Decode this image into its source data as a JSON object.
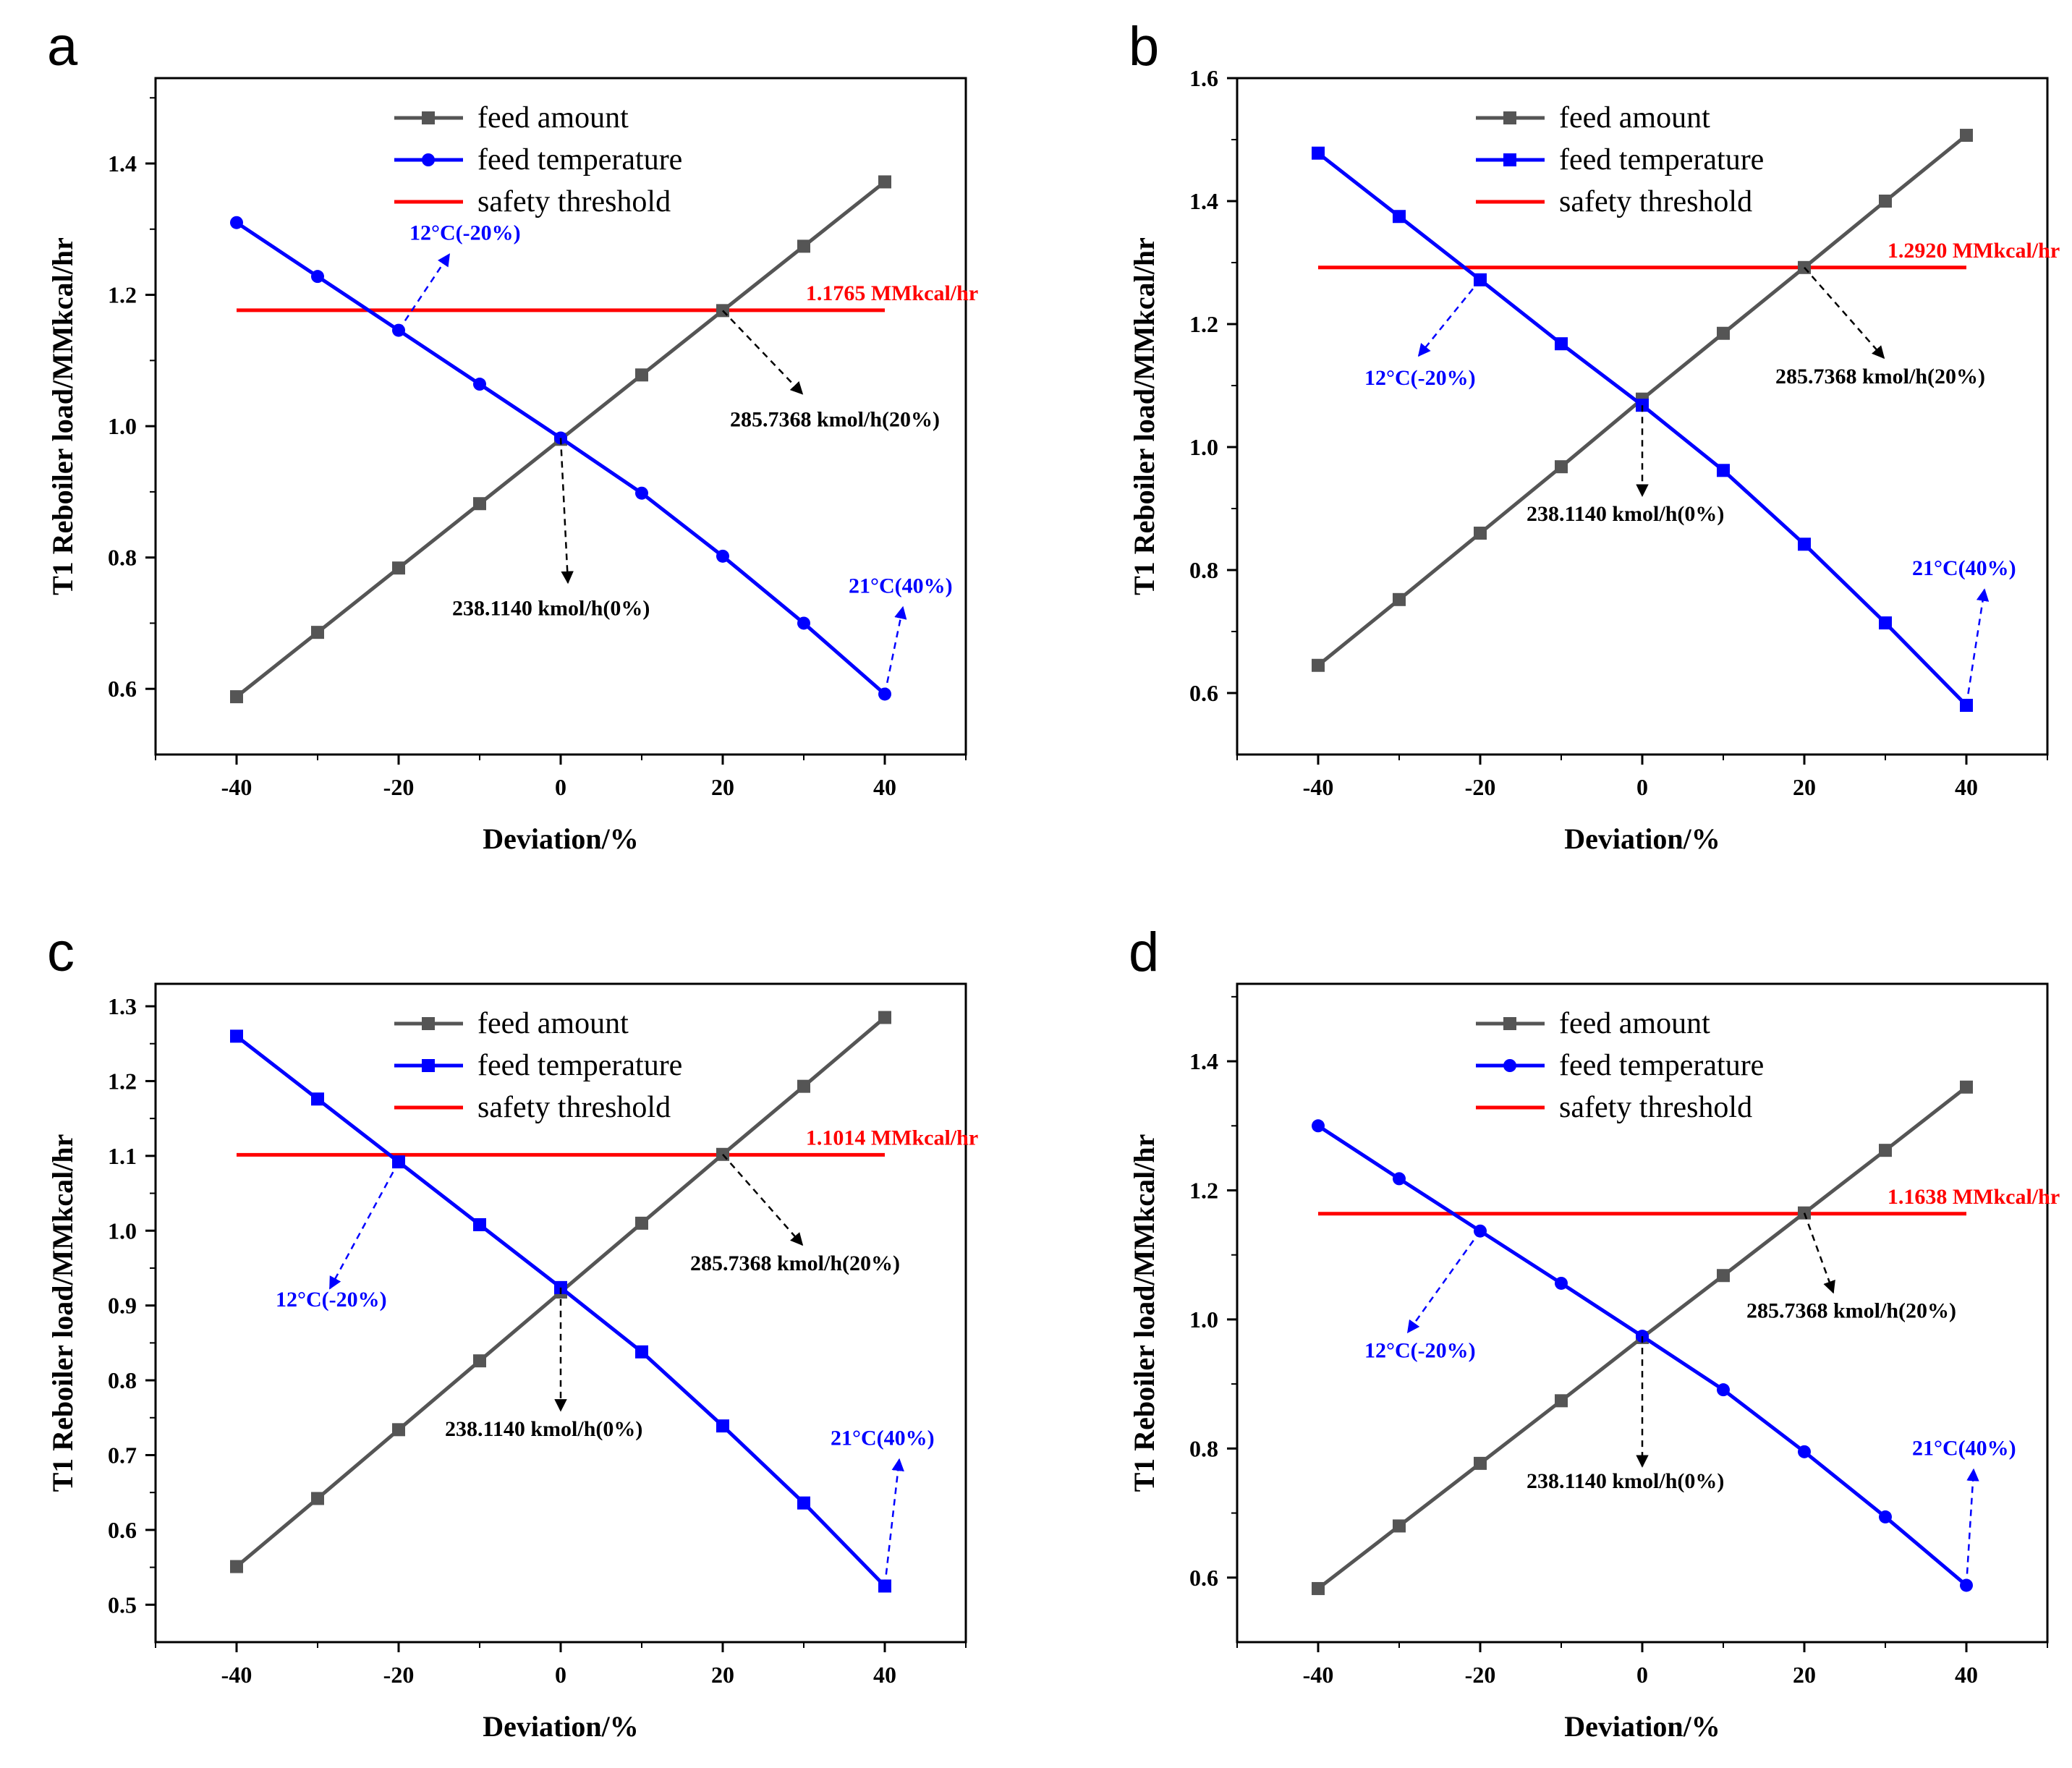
{
  "chart_data": [
    {
      "panel": "a",
      "type": "line",
      "xlabel": "Deviation/%",
      "ylabel": "T1 Reboiler load/MMkcal/hr",
      "xlim": [
        -50,
        50
      ],
      "ylim": [
        0.5,
        1.53
      ],
      "xticks": [
        -40,
        -20,
        0,
        20,
        40
      ],
      "xtick_labels": [
        "-40",
        "-20",
        "0",
        "20",
        "40"
      ],
      "yticks": [
        0.6,
        0.8,
        1.0,
        1.2,
        1.4
      ],
      "ytick_labels": [
        "0.6",
        "0.8",
        "1.0",
        "1.2",
        "1.4"
      ],
      "x": [
        -40,
        -30,
        -20,
        -10,
        0,
        10,
        20,
        30,
        40
      ],
      "series": [
        {
          "name": "feed amount",
          "color": "#555555",
          "marker": "square",
          "values": [
            0.588,
            0.686,
            0.784,
            0.882,
            0.98,
            1.078,
            1.176,
            1.274,
            1.372
          ]
        },
        {
          "name": "feed temperature",
          "color": "#0000ff",
          "marker": "circle",
          "values": [
            1.31,
            1.228,
            1.146,
            1.064,
            0.982,
            0.898,
            0.802,
            0.7,
            0.592
          ]
        }
      ],
      "threshold": {
        "name": "safety threshold",
        "color": "#ff0000",
        "value": 1.1765,
        "label": "1.1765 MMkcal/hr"
      },
      "annotations": [
        {
          "text": "12°C(-20%)",
          "color": "#0000ff"
        },
        {
          "text": "285.7368 kmol/h(20%)",
          "color": "#000000"
        },
        {
          "text": "238.1140 kmol/h(0%)",
          "color": "#000000"
        },
        {
          "text": "21°C(40%)",
          "color": "#0000ff"
        }
      ]
    },
    {
      "panel": "b",
      "type": "line",
      "xlabel": "Deviation/%",
      "ylabel": "T1 Reboiler load/MMkcal/hr",
      "xlim": [
        -50,
        50
      ],
      "ylim": [
        0.5,
        1.6
      ],
      "xticks": [
        -40,
        -20,
        0,
        20,
        40
      ],
      "xtick_labels": [
        "-40",
        "-20",
        "0",
        "20",
        "40"
      ],
      "yticks": [
        0.6,
        0.8,
        1.0,
        1.2,
        1.4,
        1.6
      ],
      "ytick_labels": [
        "0.6",
        "0.8",
        "1.0",
        "1.2",
        "1.4",
        "1.6"
      ],
      "x": [
        -40,
        -30,
        -20,
        -10,
        0,
        10,
        20,
        30,
        40
      ],
      "series": [
        {
          "name": "feed amount",
          "color": "#555555",
          "marker": "square",
          "values": [
            0.645,
            0.752,
            0.86,
            0.968,
            1.078,
            1.185,
            1.292,
            1.4,
            1.507
          ]
        },
        {
          "name": "feed temperature",
          "color": "#0000ff",
          "marker": "square",
          "values": [
            1.478,
            1.375,
            1.272,
            1.168,
            1.068,
            0.962,
            0.842,
            0.714,
            0.58
          ]
        }
      ],
      "threshold": {
        "name": "safety threshold",
        "color": "#ff0000",
        "value": 1.292,
        "label": "1.2920 MMkcal/hr"
      },
      "annotations": [
        {
          "text": "12°C(-20%)",
          "color": "#0000ff"
        },
        {
          "text": "285.7368 kmol/h(20%)",
          "color": "#000000"
        },
        {
          "text": "238.1140 kmol/h(0%)",
          "color": "#000000"
        },
        {
          "text": "21°C(40%)",
          "color": "#0000ff"
        }
      ]
    },
    {
      "panel": "c",
      "type": "line",
      "xlabel": "Deviation/%",
      "ylabel": "T1 Reboiler load/MMkcal/hr",
      "xlim": [
        -50,
        50
      ],
      "ylim": [
        0.45,
        1.33
      ],
      "xticks": [
        -40,
        -20,
        0,
        20,
        40
      ],
      "xtick_labels": [
        "-40",
        "-20",
        "0",
        "20",
        "40"
      ],
      "yticks": [
        0.5,
        0.6,
        0.7,
        0.8,
        0.9,
        1.0,
        1.1,
        1.2,
        1.3
      ],
      "ytick_labels": [
        "0.5",
        "0.6",
        "0.7",
        "0.8",
        "0.9",
        "1.0",
        "1.1",
        "1.2",
        "1.3"
      ],
      "x": [
        -40,
        -30,
        -20,
        -10,
        0,
        10,
        20,
        30,
        40
      ],
      "series": [
        {
          "name": "feed amount",
          "color": "#555555",
          "marker": "square",
          "values": [
            0.551,
            0.642,
            0.734,
            0.826,
            0.918,
            1.01,
            1.102,
            1.193,
            1.285
          ]
        },
        {
          "name": "feed temperature",
          "color": "#0000ff",
          "marker": "square",
          "values": [
            1.26,
            1.176,
            1.092,
            1.008,
            0.924,
            0.838,
            0.739,
            0.636,
            0.525
          ]
        }
      ],
      "threshold": {
        "name": "safety threshold",
        "color": "#ff0000",
        "value": 1.1014,
        "label": "1.1014 MMkcal/hr"
      },
      "annotations": [
        {
          "text": "12°C(-20%)",
          "color": "#0000ff"
        },
        {
          "text": "285.7368 kmol/h(20%)",
          "color": "#000000"
        },
        {
          "text": "238.1140 kmol/h(0%)",
          "color": "#000000"
        },
        {
          "text": "21°C(40%)",
          "color": "#0000ff"
        }
      ]
    },
    {
      "panel": "d",
      "type": "line",
      "xlabel": "Deviation/%",
      "ylabel": "T1 Reboiler load/MMkcal/hr",
      "xlim": [
        -50,
        50
      ],
      "ylim": [
        0.5,
        1.52
      ],
      "xticks": [
        -40,
        -20,
        0,
        20,
        40
      ],
      "xtick_labels": [
        "-40",
        "-20",
        "0",
        "20",
        "40"
      ],
      "yticks": [
        0.6,
        0.8,
        1.0,
        1.2,
        1.4
      ],
      "ytick_labels": [
        "0.6",
        "0.8",
        "1.0",
        "1.2",
        "1.4"
      ],
      "x": [
        -40,
        -30,
        -20,
        -10,
        0,
        10,
        20,
        30,
        40
      ],
      "series": [
        {
          "name": "feed amount",
          "color": "#555555",
          "marker": "square",
          "values": [
            0.583,
            0.68,
            0.777,
            0.874,
            0.972,
            1.068,
            1.165,
            1.262,
            1.36
          ]
        },
        {
          "name": "feed temperature",
          "color": "#0000ff",
          "marker": "circle",
          "values": [
            1.3,
            1.218,
            1.137,
            1.056,
            0.974,
            0.891,
            0.795,
            0.694,
            0.588
          ]
        }
      ],
      "threshold": {
        "name": "safety threshold",
        "color": "#ff0000",
        "value": 1.1638,
        "label": "1.1638 MMkcal/hr"
      },
      "annotations": [
        {
          "text": "12°C(-20%)",
          "color": "#0000ff"
        },
        {
          "text": "285.7368 kmol/h(20%)",
          "color": "#000000"
        },
        {
          "text": "238.1140 kmol/h(0%)",
          "color": "#000000"
        },
        {
          "text": "21°C(40%)",
          "color": "#0000ff"
        }
      ]
    }
  ]
}
